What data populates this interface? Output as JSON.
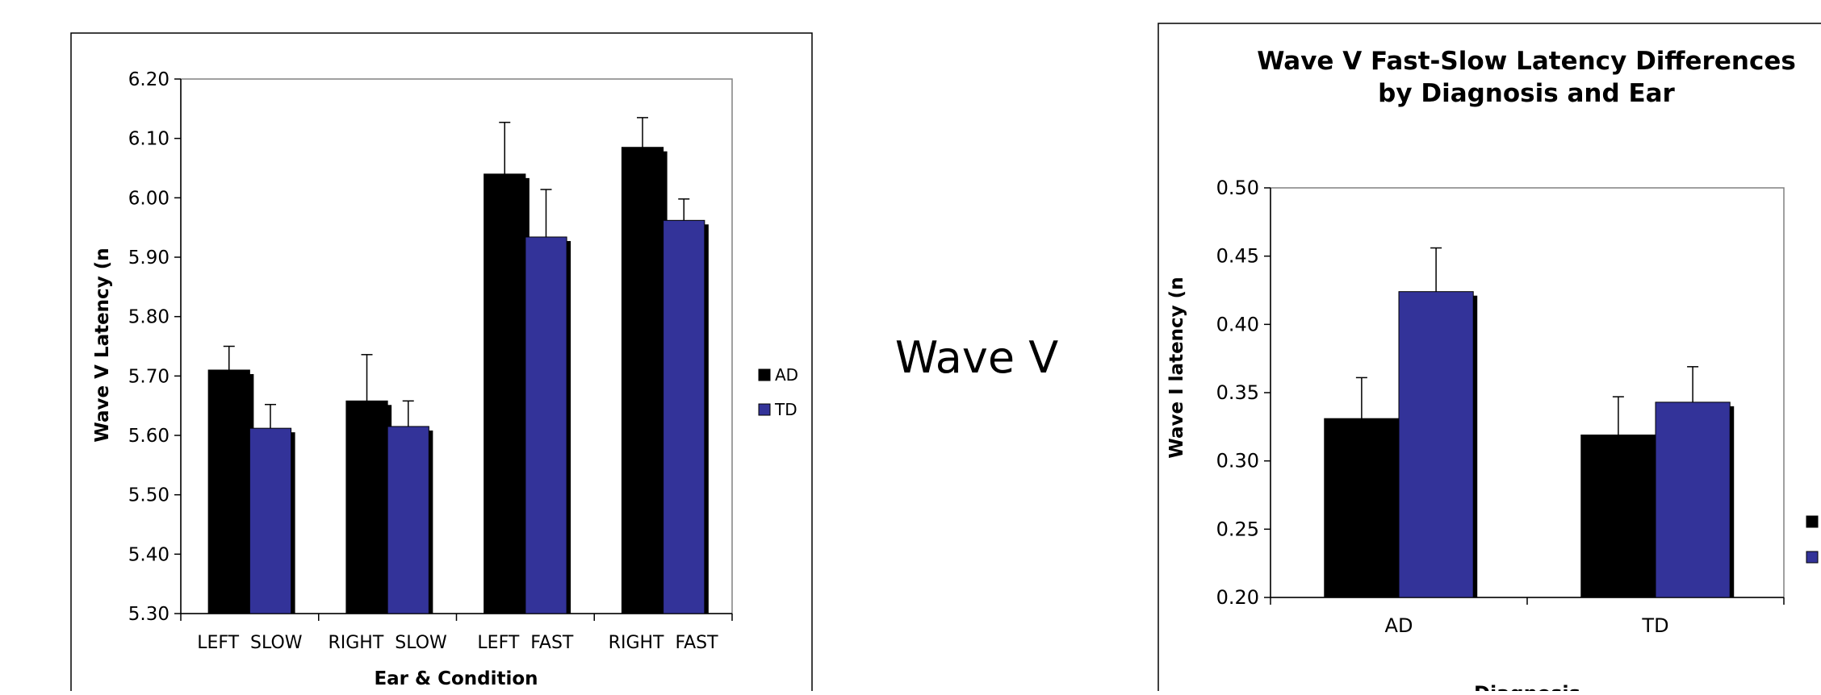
{
  "middle_label": "Wave V",
  "colors": {
    "AD": "#000000",
    "TD": "#333399",
    "shadow": "#000000",
    "axis": "#808080"
  },
  "chart_data": [
    {
      "type": "bar",
      "title": "",
      "xlabel": "Ear & Condition",
      "ylabel": "Wave V Latency (n",
      "categories": [
        "LEFT  SLOW",
        "RIGHT  SLOW",
        "LEFT  FAST",
        "RIGHT  FAST"
      ],
      "series": [
        {
          "name": "AD",
          "values": [
            5.71,
            5.658,
            6.04,
            6.085
          ],
          "errors": [
            0.04,
            0.078,
            0.087,
            0.05
          ]
        },
        {
          "name": "TD",
          "values": [
            5.612,
            5.615,
            5.934,
            5.962
          ],
          "errors": [
            0.04,
            0.043,
            0.08,
            0.036
          ]
        }
      ],
      "ylim": [
        5.3,
        6.2
      ],
      "yticks": [
        "5.30",
        "5.40",
        "5.50",
        "5.60",
        "5.70",
        "5.80",
        "5.90",
        "6.00",
        "6.10",
        "6.20"
      ],
      "grid": false,
      "legend": "right"
    },
    {
      "type": "bar",
      "title": "Wave V Fast-Slow Latency Differences",
      "subtitle": "by Diagnosis and Ear",
      "xlabel": "Diagnosis",
      "ylabel": "Wave I latency (n",
      "categories": [
        "AD",
        "TD"
      ],
      "series": [
        {
          "name": "",
          "values": [
            0.331,
            0.319
          ],
          "errors": [
            0.03,
            0.028
          ]
        },
        {
          "name": "",
          "values": [
            0.424,
            0.343
          ],
          "errors": [
            0.032,
            0.026
          ]
        }
      ],
      "ylim": [
        0.2,
        0.5
      ],
      "yticks": [
        "0.20",
        "0.25",
        "0.30",
        "0.35",
        "0.40",
        "0.45",
        "0.50"
      ],
      "grid": false,
      "legend": "right"
    }
  ]
}
